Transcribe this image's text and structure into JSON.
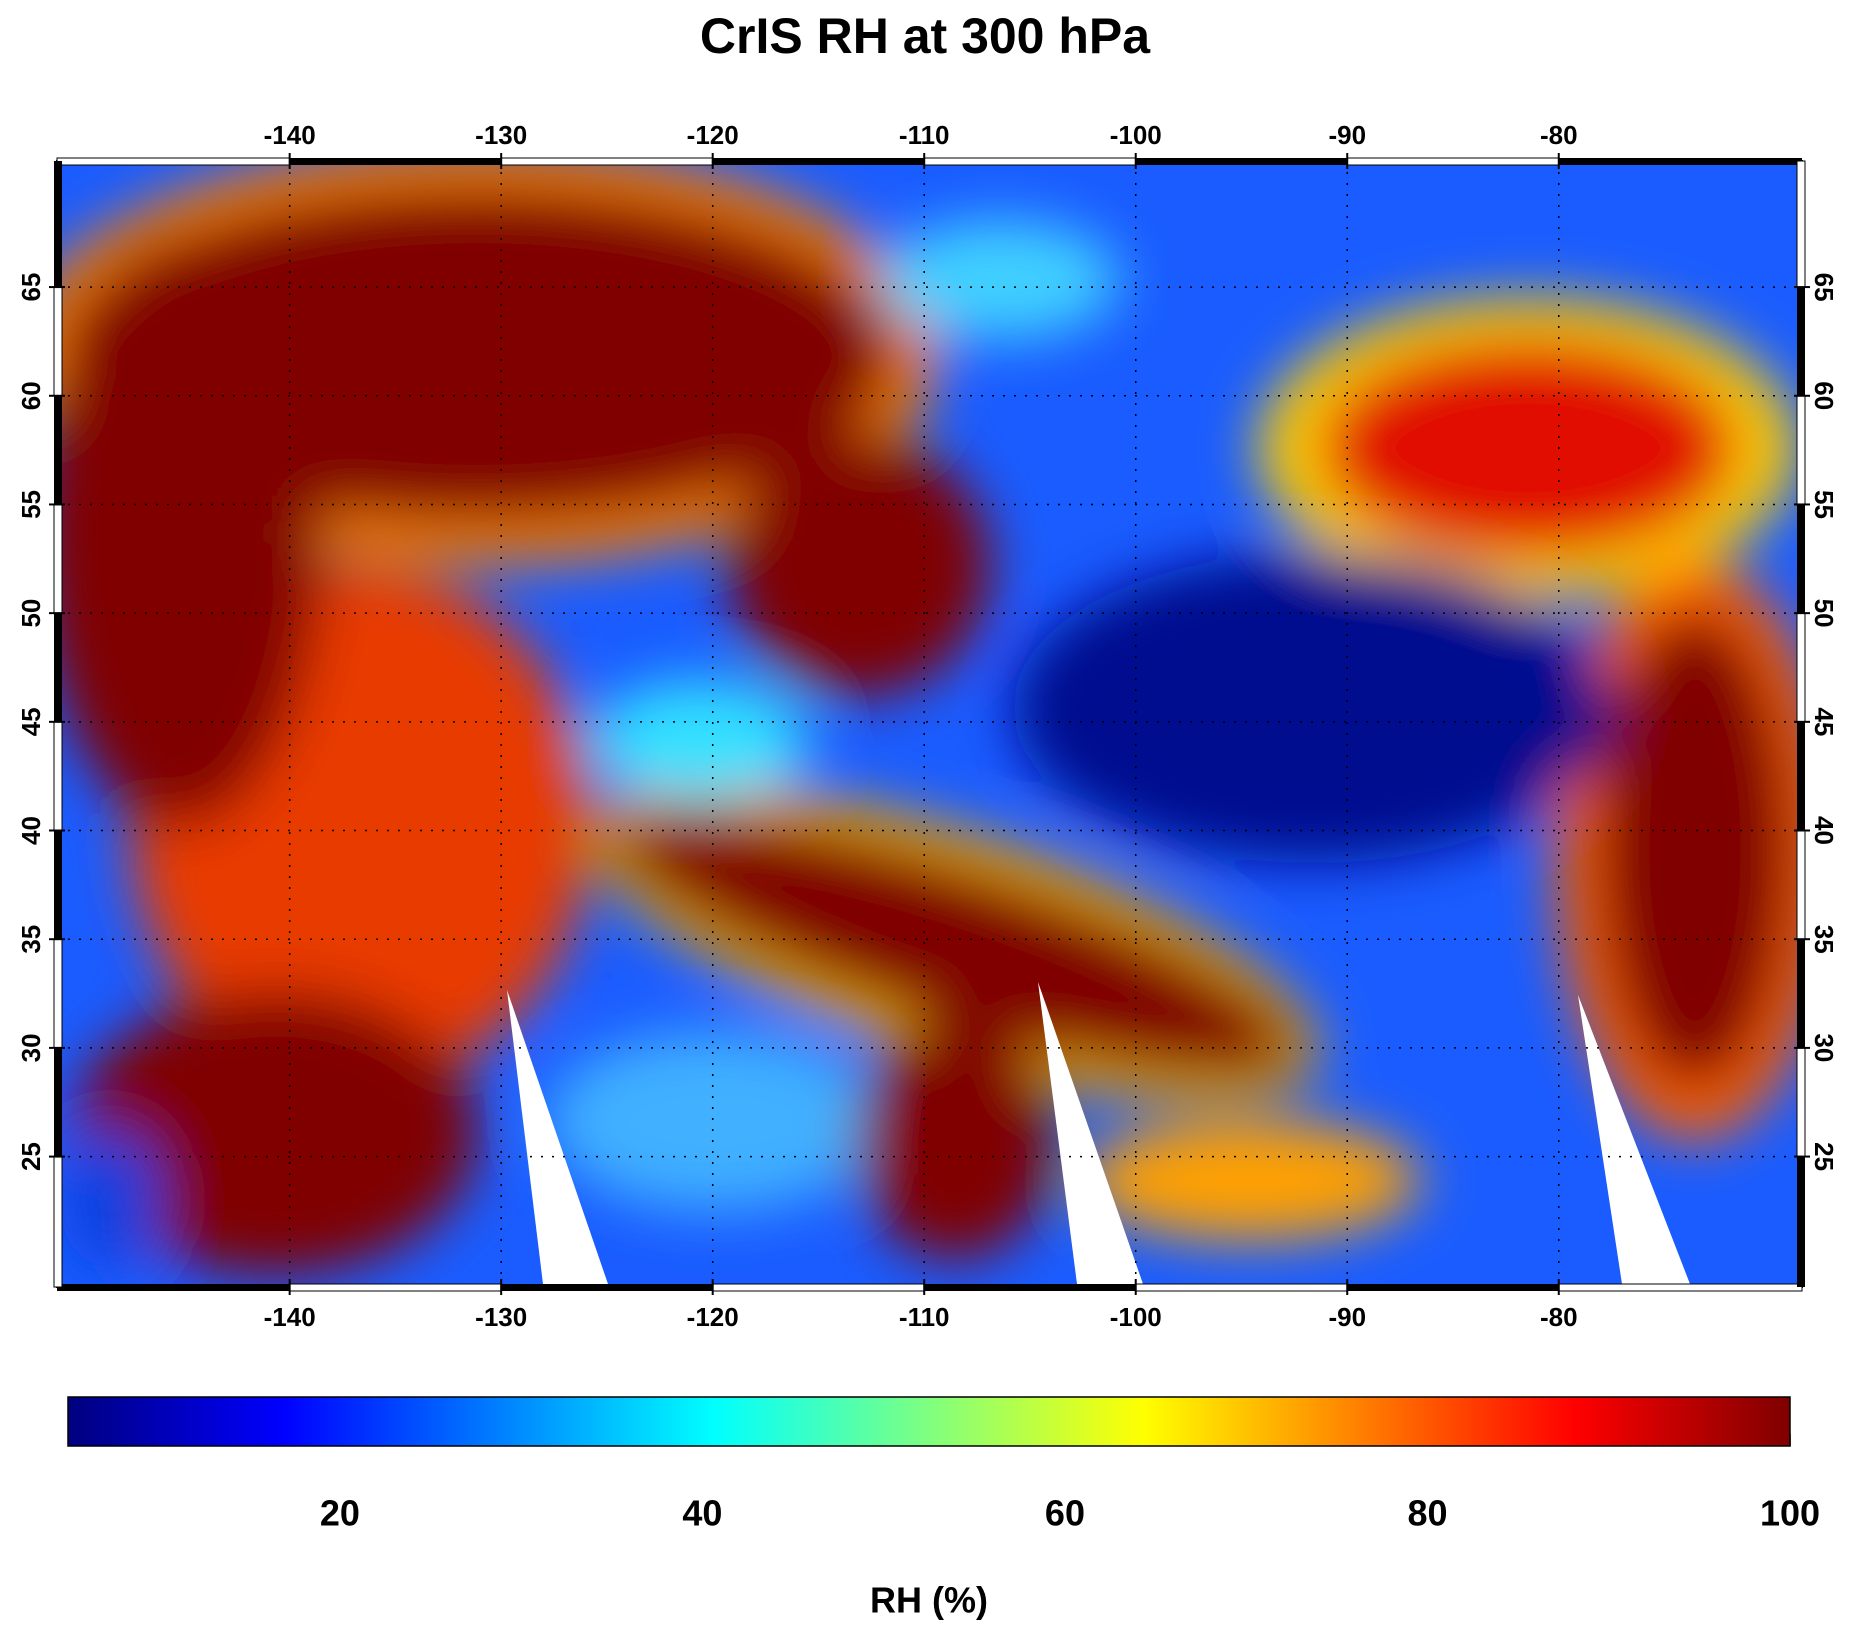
{
  "chart_data": {
    "type": "map",
    "title": "CrIS RH at 300 hPa",
    "xlim": [
      -151,
      -68.5
    ],
    "xticks": [
      -140,
      -130,
      -120,
      -110,
      -100,
      -90,
      -80
    ],
    "ylim": [
      19,
      70.8
    ],
    "yticks": [
      25,
      30,
      35,
      40,
      45,
      50,
      55,
      60,
      65
    ],
    "colorbar": {
      "lim": [
        5,
        100
      ],
      "ticks": [
        20,
        40,
        60,
        80,
        100
      ],
      "label": "RH (%)"
    }
  }
}
